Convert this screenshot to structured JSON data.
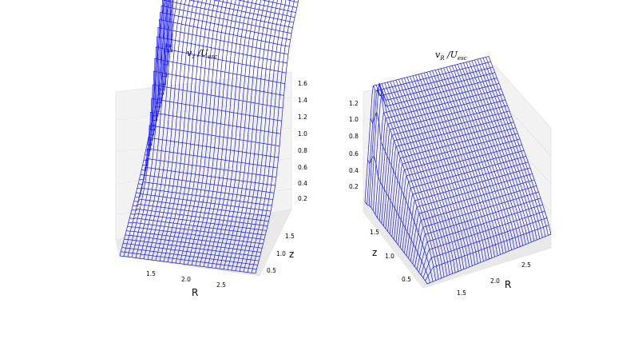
{
  "chart_data": [
    {
      "type": "surface",
      "title": "v_z / U_esc",
      "title_main": "v",
      "title_sub": "z",
      "title_den": "U",
      "title_den_sub": "esc",
      "xlabel": "R",
      "ylabel": "z",
      "x_ticks": [
        "1.5",
        "2.0",
        "2.5"
      ],
      "y_ticks": [
        "0.5",
        "1.0",
        "1.5"
      ],
      "z_ticks": [
        "0.2",
        "0.4",
        "0.6",
        "0.8",
        "1.0",
        "1.2",
        "1.4",
        "1.6"
      ],
      "xlim": [
        1.1,
        2.9
      ],
      "ylim": [
        0.2,
        1.8
      ],
      "zlim": [
        0,
        1.7
      ],
      "grid": true,
      "color": "#1414ff"
    },
    {
      "type": "surface",
      "title": "v_R / U_esc",
      "title_main": "v",
      "title_sub": "R",
      "title_den": "U",
      "title_den_sub": "esc",
      "xlabel": "R",
      "ylabel": "z",
      "x_ticks": [
        "1.5",
        "2.0",
        "2.5"
      ],
      "y_ticks": [
        "0.5",
        "1.0",
        "1.5"
      ],
      "z_ticks": [
        "0.2",
        "0.4",
        "0.6",
        "0.8",
        "1.0",
        "1.2"
      ],
      "xlim": [
        1.1,
        2.9
      ],
      "ylim": [
        0.2,
        1.8
      ],
      "zlim": [
        0,
        1.35
      ],
      "grid": true,
      "color": "#1414ff"
    }
  ]
}
